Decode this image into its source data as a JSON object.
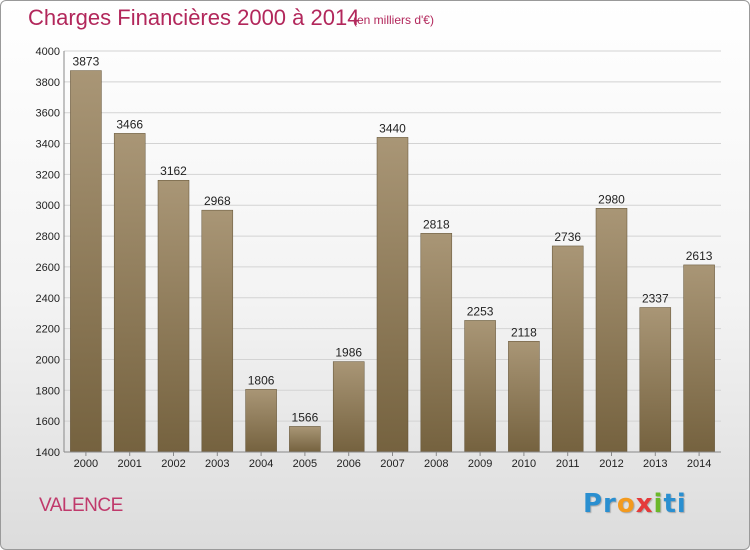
{
  "title": "Charges Financières 2000 à 2014",
  "subtitle": "(en milliers d'€)",
  "city": "VALENCE",
  "logo": {
    "letters": [
      "Pr",
      "o",
      "x",
      "i",
      "ti"
    ]
  },
  "colors": {
    "title": "#b2275b",
    "bar_top": "#a99676",
    "bar_bottom": "#75623f",
    "grid": "#d3d3d3",
    "axis_text": "#222222"
  },
  "chart_data": {
    "type": "bar",
    "title": "Charges Financières 2000 à 2014",
    "subtitle": "(en milliers d'€)",
    "categories": [
      "2000",
      "2001",
      "2002",
      "2003",
      "2004",
      "2005",
      "2006",
      "2007",
      "2008",
      "2009",
      "2010",
      "2011",
      "2012",
      "2013",
      "2014"
    ],
    "values": [
      3873,
      3466,
      3162,
      2968,
      1806,
      1566,
      1986,
      3440,
      2818,
      2253,
      2118,
      2736,
      2980,
      2337,
      2613
    ],
    "ylim": [
      1400,
      4000
    ],
    "yticks": [
      1400,
      1600,
      1800,
      2000,
      2200,
      2400,
      2600,
      2800,
      3000,
      3200,
      3400,
      3600,
      3800,
      4000
    ],
    "grid": true,
    "data_labels": true
  }
}
